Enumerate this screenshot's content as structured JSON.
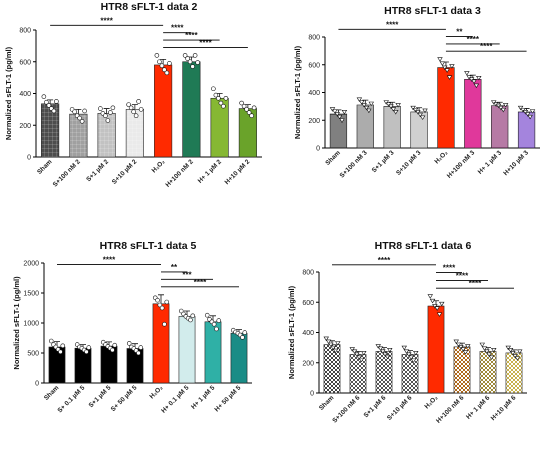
{
  "chart_data": [
    {
      "type": "bar",
      "title": "HTR8 sFLT-1 data 2",
      "ylabel": "Normalized sFLT-1 (pg/ml)",
      "ylim": [
        0,
        800
      ],
      "yticks": [
        "0",
        "200",
        "400",
        "600",
        "800"
      ],
      "categories": [
        "Sham",
        "S+100 nM 2",
        "S+1 µM 2",
        "S+10 µM 2",
        "H₂O₂",
        "H+100 nM 2",
        "H+ 1 µM 2",
        "H+10 µM 2"
      ],
      "values": [
        335,
        270,
        275,
        300,
        580,
        600,
        370,
        305
      ],
      "errors": [
        25,
        30,
        30,
        30,
        35,
        30,
        30,
        25
      ],
      "points": [
        [
          380,
          345,
          325,
          305,
          290,
          350
        ],
        [
          300,
          285,
          260,
          245,
          225,
          290
        ],
        [
          305,
          275,
          260,
          230,
          280,
          310
        ],
        [
          330,
          310,
          285,
          260,
          350,
          300
        ],
        [
          640,
          600,
          575,
          550,
          530,
          590
        ],
        [
          640,
          620,
          600,
          570,
          640,
          595
        ],
        [
          430,
          390,
          370,
          340,
          320,
          370
        ],
        [
          340,
          320,
          300,
          280,
          260,
          310
        ]
      ],
      "colors": [
        "#2e2e2e",
        "#909090",
        "#b8b8b8",
        "#e6e6e6",
        "#ff2a00",
        "#1f7a55",
        "#86b833",
        "#6aa32a"
      ],
      "fills": [
        "grid",
        "grid",
        "grid",
        "grid",
        "solid",
        "solid",
        "solid",
        "solid"
      ],
      "markers": [
        "circle",
        "circle",
        "circle",
        "circle",
        "circle",
        "circle",
        "circle",
        "circle"
      ],
      "brackets": [
        {
          "from": 0,
          "to": 4,
          "label": "****"
        },
        {
          "from": 4,
          "to": 5,
          "label": "****"
        },
        {
          "from": 4,
          "to": 6,
          "label": "****"
        },
        {
          "from": 4,
          "to": 7,
          "label": "****"
        }
      ]
    },
    {
      "type": "bar",
      "title": "HTR8 sFLT-1 data 3",
      "ylabel": "Normalized sFLT-1 (pg/ml)",
      "ylim": [
        0,
        800
      ],
      "yticks": [
        "0",
        "200",
        "400",
        "600",
        "800"
      ],
      "categories": [
        "Sham",
        "S+100 nM 3",
        "S+1 µM 3",
        "S+10 µM 3",
        "H₂O₂",
        "H+100 nM 3",
        "H+ 1 µM 3",
        "H+10 µM 3"
      ],
      "values": [
        245,
        310,
        300,
        260,
        580,
        495,
        305,
        260
      ],
      "errors": [
        30,
        35,
        30,
        30,
        40,
        30,
        25,
        25
      ],
      "points": [
        [
          280,
          265,
          245,
          225,
          200,
          260
        ],
        [
          350,
          330,
          310,
          290,
          270,
          320
        ],
        [
          330,
          315,
          300,
          280,
          260,
          310
        ],
        [
          290,
          275,
          260,
          240,
          220,
          270
        ],
        [
          640,
          610,
          580,
          560,
          510,
          590
        ],
        [
          540,
          510,
          495,
          480,
          450,
          505
        ],
        [
          330,
          315,
          305,
          290,
          275,
          310
        ],
        [
          290,
          275,
          260,
          245,
          225,
          265
        ]
      ],
      "colors": [
        "#333333",
        "#7a7a7a",
        "#9a9a9a",
        "#b5b5b5",
        "#ff2a00",
        "#e0389b",
        "#8a2a6f",
        "#6e3ac9"
      ],
      "fills": [
        "hstripe",
        "hstripe",
        "hstripe",
        "hstripe",
        "solid",
        "solid",
        "hstripe",
        "hstripe"
      ],
      "markers": [
        "tri-down",
        "tri-down",
        "tri-down",
        "tri-down",
        "tri-down",
        "tri-down",
        "tri-down",
        "tri-down"
      ],
      "brackets": [
        {
          "from": 0,
          "to": 4,
          "label": "****"
        },
        {
          "from": 4,
          "to": 5,
          "label": "**"
        },
        {
          "from": 4,
          "to": 6,
          "label": "****"
        },
        {
          "from": 4,
          "to": 7,
          "label": "****"
        }
      ]
    },
    {
      "type": "bar",
      "title": "HTR8 sFLT-1 data 5",
      "ylabel": "Normalized sFLT-1 (pg/ml)",
      "ylim": [
        0,
        2000
      ],
      "yticks": [
        "0",
        "500",
        "1000",
        "1500",
        "2000"
      ],
      "categories": [
        "Sham",
        "S+ 0.1 µM 5",
        "S+1 µM 5",
        "S+ 50 µM 5",
        "H₂O₂",
        "H+ 0.1 µM 5",
        "H+ 1 µM 5",
        "H+ 50 µM 5"
      ],
      "values": [
        600,
        580,
        615,
        575,
        1320,
        1110,
        1020,
        830
      ],
      "errors": [
        90,
        60,
        70,
        80,
        150,
        90,
        100,
        60
      ],
      "points": [
        [
          700,
          640,
          600,
          560,
          520,
          620
        ],
        [
          640,
          600,
          580,
          550,
          520,
          590
        ],
        [
          680,
          640,
          610,
          580,
          550,
          630
        ],
        [
          660,
          600,
          575,
          540,
          500,
          590
        ],
        [
          1420,
          1380,
          1300,
          1250,
          980,
          1350
        ],
        [
          1200,
          1150,
          1110,
          1080,
          1050,
          1120
        ],
        [
          1130,
          1060,
          1020,
          980,
          900,
          1040
        ],
        [
          880,
          850,
          830,
          800,
          760,
          840
        ]
      ],
      "colors": [
        "#000000",
        "#000000",
        "#000000",
        "#000000",
        "#ff2a00",
        "#d2ecec",
        "#2fb0a6",
        "#1a8c86"
      ],
      "fills": [
        "solid",
        "solid",
        "solid",
        "solid",
        "solid",
        "solid",
        "solid",
        "solid"
      ],
      "markers": [
        "circle",
        "circle",
        "circle",
        "circle",
        "circle",
        "circle",
        "circle",
        "circle"
      ],
      "brackets": [
        {
          "from": 0,
          "to": 4,
          "label": "****"
        },
        {
          "from": 4,
          "to": 5,
          "label": "**"
        },
        {
          "from": 4,
          "to": 6,
          "label": "***"
        },
        {
          "from": 4,
          "to": 7,
          "label": "****"
        }
      ]
    },
    {
      "type": "bar",
      "title": "HTR8 sFLT-1 data 6",
      "ylabel": "Normalized sFLT-1 (pg/ml)",
      "ylim": [
        0,
        800
      ],
      "yticks": [
        "0",
        "200",
        "400",
        "600",
        "800"
      ],
      "categories": [
        "Sham",
        "S+100 nM 6",
        "S+1 µM 6",
        "S+10 µM 6",
        "H₂O₂",
        "H+100 nM 6",
        "H+ 1 µM 6",
        "H+10 µM 6"
      ],
      "values": [
        320,
        255,
        275,
        255,
        575,
        305,
        275,
        265
      ],
      "errors": [
        25,
        20,
        25,
        25,
        35,
        25,
        25,
        20
      ],
      "points": [
        [
          360,
          340,
          320,
          300,
          280,
          330
        ],
        [
          290,
          275,
          255,
          235,
          220,
          265
        ],
        [
          310,
          295,
          275,
          255,
          240,
          285
        ],
        [
          300,
          275,
          255,
          235,
          215,
          265
        ],
        [
          640,
          610,
          575,
          560,
          520,
          590
        ],
        [
          340,
          320,
          305,
          290,
          270,
          310
        ],
        [
          320,
          295,
          275,
          255,
          235,
          285
        ],
        [
          300,
          285,
          265,
          245,
          230,
          275
        ]
      ],
      "colors": [
        "#444444",
        "#555555",
        "#555555",
        "#555555",
        "#ff2a00",
        "#b06a1e",
        "#9f8a3a",
        "#c9b24e"
      ],
      "fills": [
        "checker",
        "checker",
        "checker",
        "checker",
        "solid",
        "checker",
        "checker",
        "checker"
      ],
      "markers": [
        "tri-down",
        "tri-down",
        "tri-down",
        "tri-down",
        "tri-down",
        "tri-down",
        "tri-down",
        "tri-down"
      ],
      "brackets": [
        {
          "from": 0,
          "to": 4,
          "label": "****"
        },
        {
          "from": 4,
          "to": 5,
          "label": "****"
        },
        {
          "from": 4,
          "to": 6,
          "label": "****"
        },
        {
          "from": 4,
          "to": 7,
          "label": "****"
        }
      ]
    }
  ]
}
